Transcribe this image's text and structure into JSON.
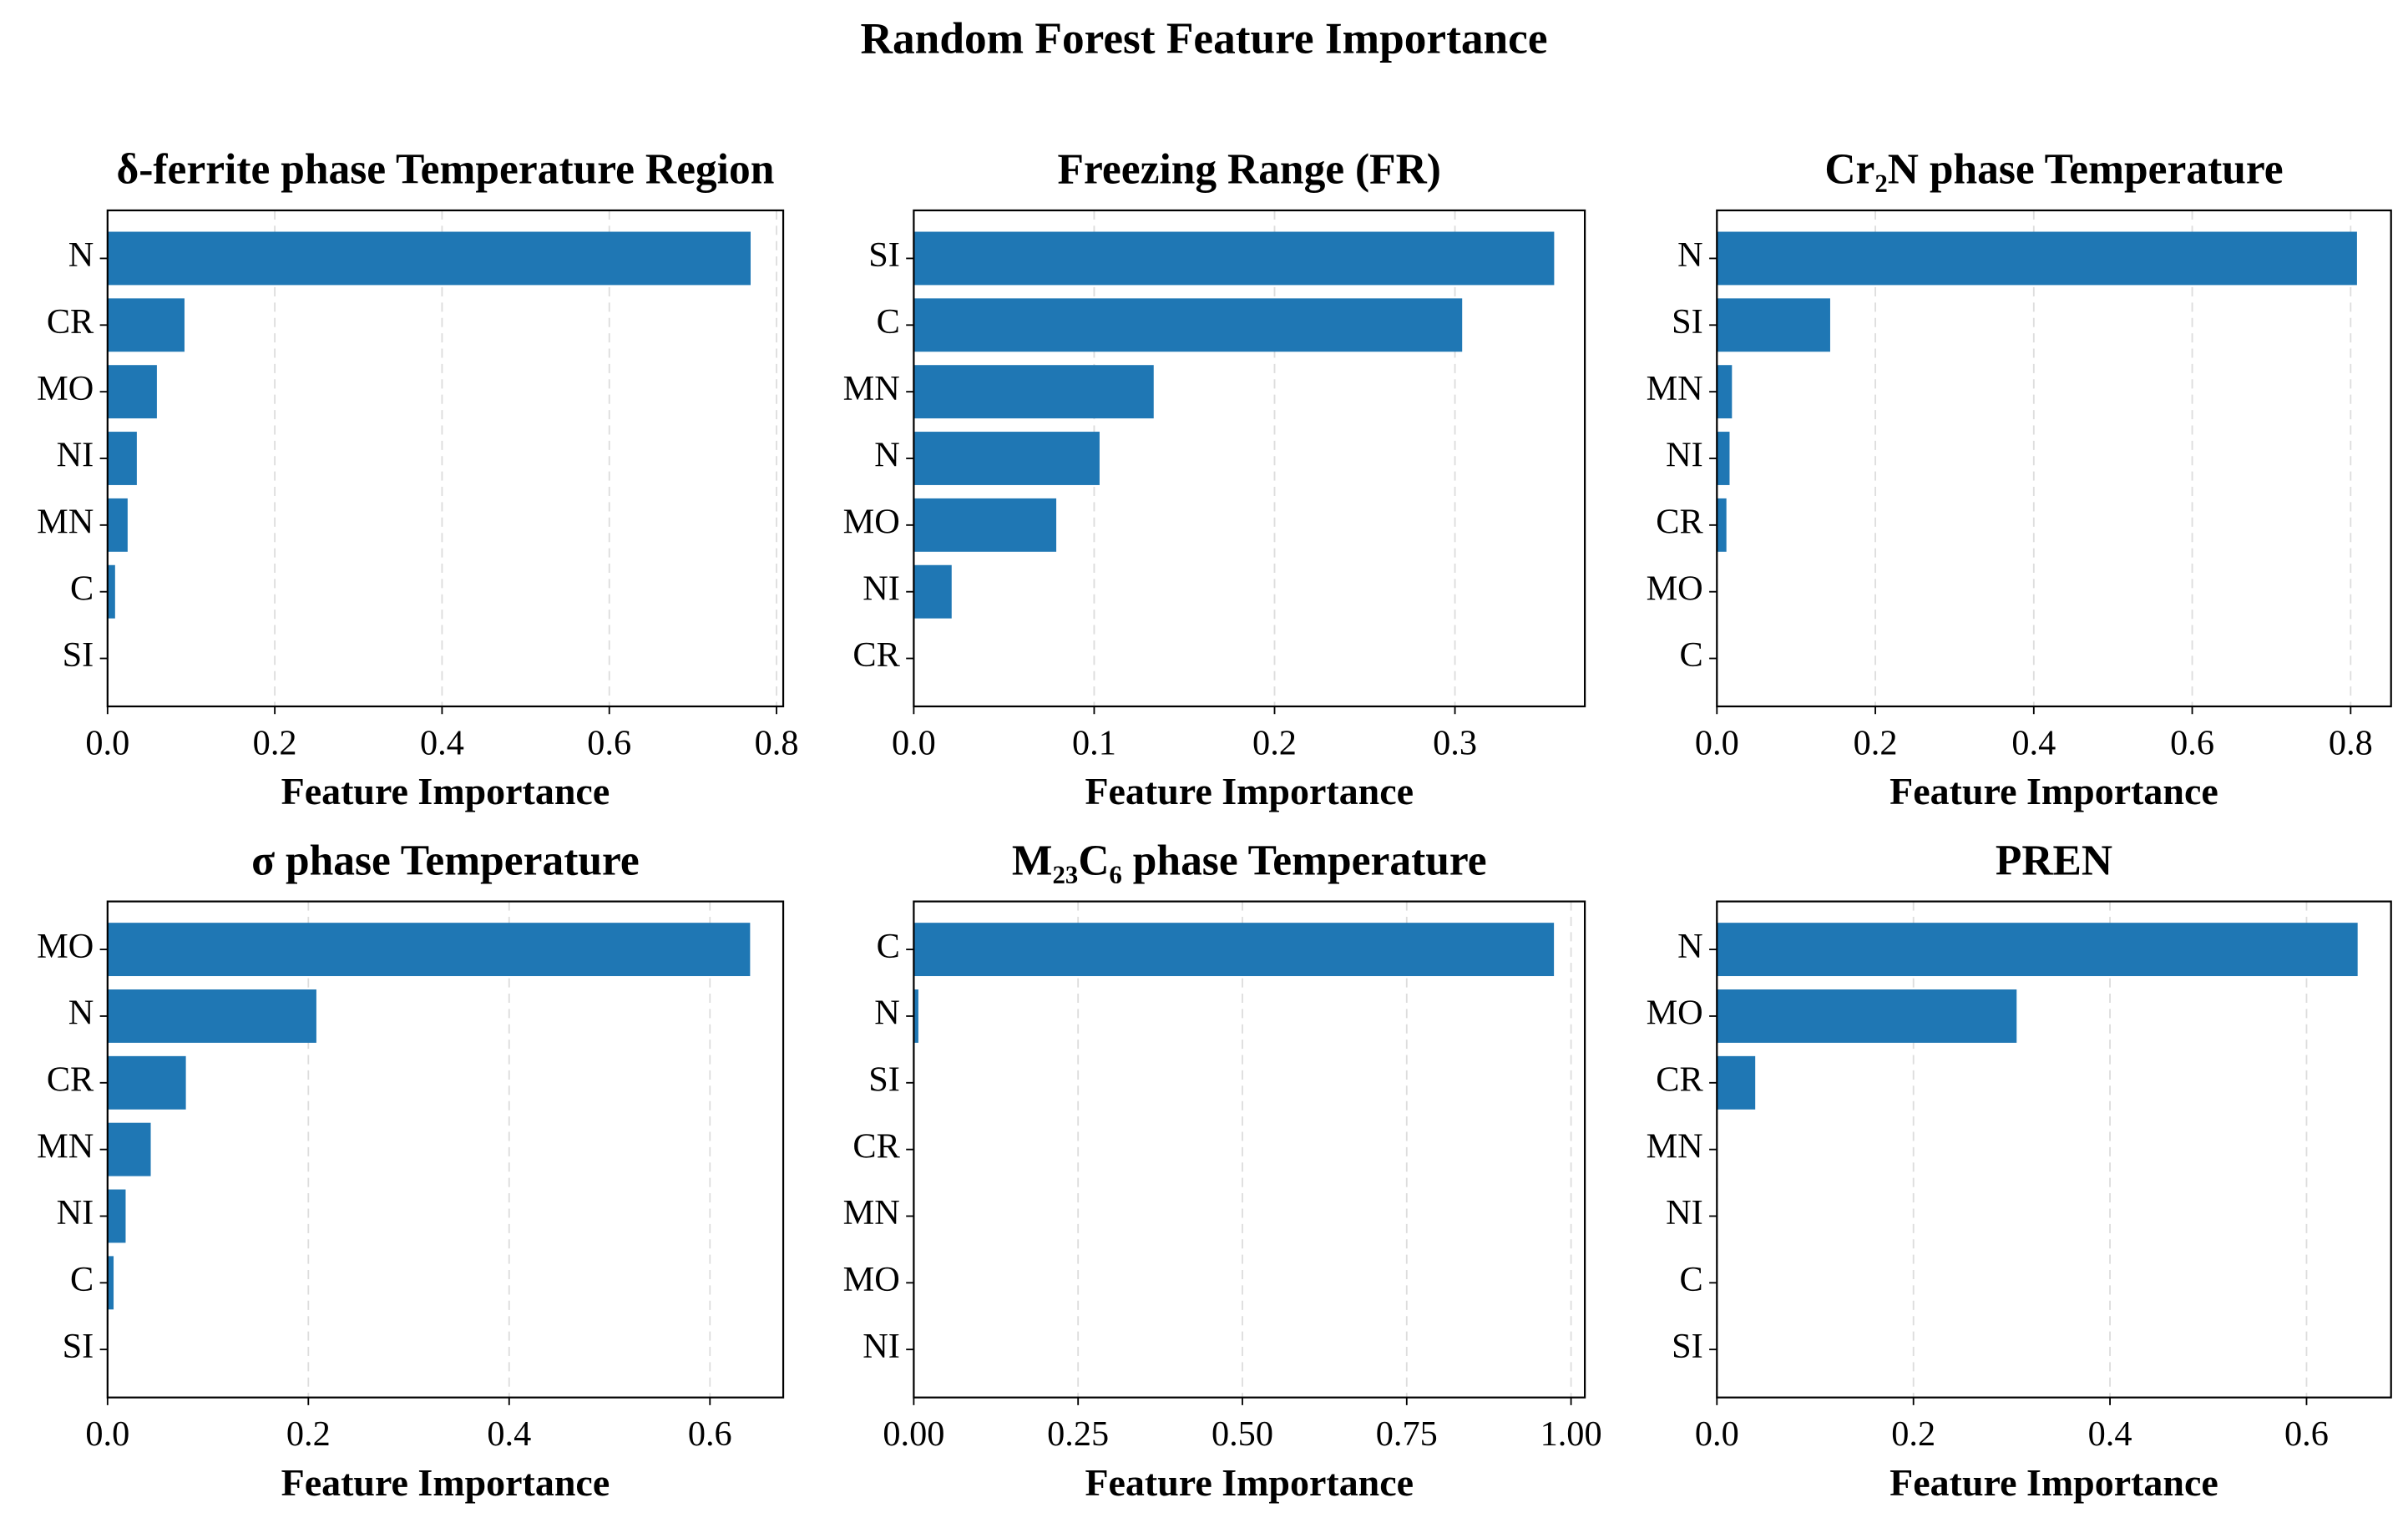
{
  "title": "Random Forest Feature Importance",
  "chart_data": [
    {
      "type": "barh",
      "title": "δ-ferrite phase Temperature Region",
      "xlabel": "Feature Importance",
      "color": "#1f77b4",
      "grid": true,
      "categories": [
        "N",
        "CR",
        "MO",
        "NI",
        "MN",
        "C",
        "SI"
      ],
      "values": [
        0.769,
        0.092,
        0.059,
        0.035,
        0.024,
        0.009,
        0
      ],
      "xlim": [
        0,
        0.808
      ],
      "xticks": [
        {
          "value": 0,
          "label": "0.0"
        },
        0.2,
        0.4,
        0.6,
        0.8
      ]
    },
    {
      "type": "barh",
      "title": "Freezing Range (FR)",
      "xlabel": "Feature Importance",
      "color": "#1f77b4",
      "grid": true,
      "categories": [
        "SI",
        "C",
        "MN",
        "N",
        "MO",
        "NI",
        "CR"
      ],
      "values": [
        0.355,
        0.304,
        0.133,
        0.103,
        0.079,
        0.021,
        0
      ],
      "xlim": [
        0,
        0.372
      ],
      "xticks": [
        {
          "value": 0,
          "label": "0.0"
        },
        0.1,
        0.2,
        0.3
      ]
    },
    {
      "type": "barh",
      "title": "Cr₂N phase Temperature",
      "xlabel": "Feature Importance",
      "color": "#1f77b4",
      "grid": true,
      "categories": [
        "N",
        "SI",
        "MN",
        "NI",
        "CR",
        "MO",
        "C"
      ],
      "values": [
        0.808,
        0.143,
        0.019,
        0.016,
        0.012,
        0,
        0
      ],
      "xlim": [
        0,
        0.851
      ],
      "xticks": [
        {
          "value": 0,
          "label": "0.0"
        },
        0.2,
        0.4,
        0.6,
        0.8
      ]
    },
    {
      "type": "barh",
      "title": "σ phase Temperature",
      "xlabel": "Feature Importance",
      "color": "#1f77b4",
      "grid": true,
      "categories": [
        "MO",
        "N",
        "CR",
        "MN",
        "NI",
        "C",
        "SI"
      ],
      "values": [
        0.64,
        0.208,
        0.078,
        0.043,
        0.018,
        0.006,
        0
      ],
      "xlim": [
        0,
        0.673
      ],
      "xticks": [
        {
          "value": 0,
          "label": "0.0"
        },
        0.2,
        0.4,
        0.6
      ]
    },
    {
      "type": "barh",
      "title": "M₂₃C₆ phase Temperature",
      "xlabel": "Feature Importance",
      "color": "#1f77b4",
      "grid": true,
      "categories": [
        "C",
        "N",
        "SI",
        "CR",
        "MN",
        "MO",
        "NI"
      ],
      "values": [
        0.974,
        0.007,
        0,
        0,
        0,
        0,
        0
      ],
      "xlim": [
        0,
        1.021
      ],
      "xticks": [
        {
          "value": 0,
          "label": "0.00"
        },
        0.25,
        {
          "value": 0.5,
          "label": "0.50"
        },
        0.75,
        {
          "value": 1,
          "label": "1.00"
        }
      ]
    },
    {
      "type": "barh",
      "title": "PREN",
      "xlabel": "Feature Importance",
      "color": "#1f77b4",
      "grid": true,
      "categories": [
        "N",
        "MO",
        "CR",
        "MN",
        "NI",
        "C",
        "SI"
      ],
      "values": [
        0.652,
        0.305,
        0.039,
        0,
        0,
        0,
        0
      ],
      "xlim": [
        0,
        0.686
      ],
      "xticks": [
        {
          "value": 0,
          "label": "0.0"
        },
        0.2,
        0.4,
        0.6
      ]
    }
  ]
}
